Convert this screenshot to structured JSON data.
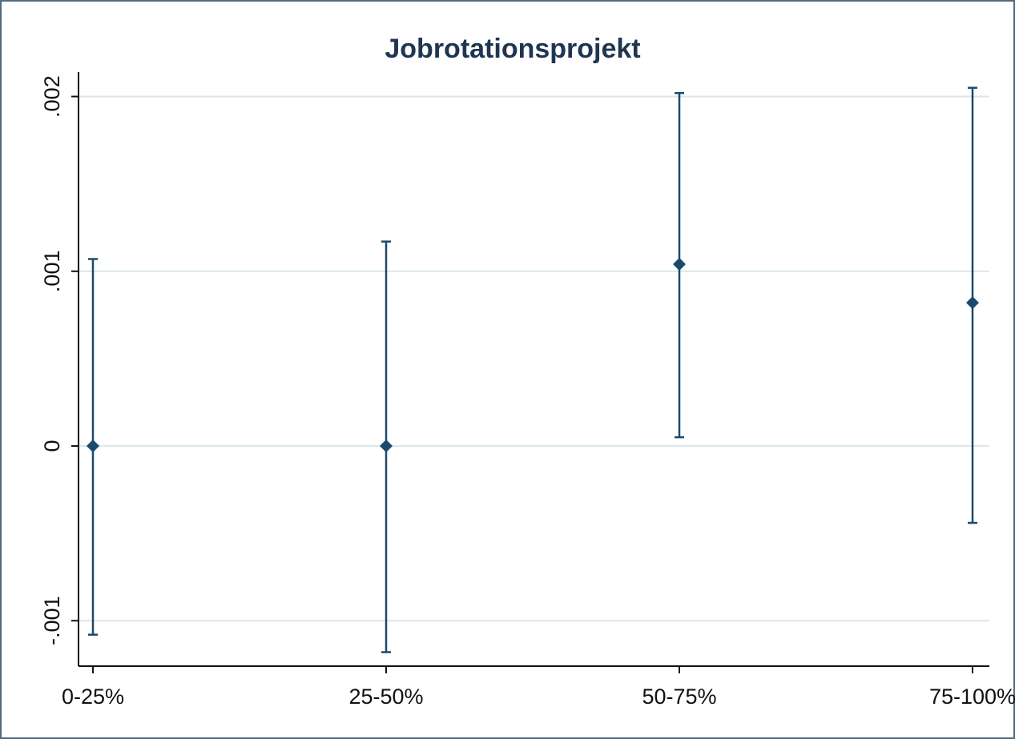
{
  "chart_data": {
    "type": "scatter",
    "title": "Jobrotationsprojekt",
    "categories": [
      "0-25%",
      "25-50%",
      "50-75%",
      "75-100%"
    ],
    "point_estimates": [
      0,
      0,
      0.00104,
      0.00082
    ],
    "ci_upper": [
      0.00107,
      0.00117,
      0.00202,
      0.00205
    ],
    "ci_lower": [
      -0.00108,
      -0.00118,
      5e-05,
      -0.00044
    ],
    "y_ticks": [
      -0.001,
      0,
      0.001,
      0.002
    ],
    "y_tick_labels": [
      "-.001",
      "0",
      ".001",
      ".002"
    ],
    "ylim": [
      -0.00126,
      0.00214
    ],
    "xlabel": "",
    "ylabel": "",
    "grid": true,
    "legend": "none",
    "colors": {
      "series": "#1b4a6e",
      "grid": "#dbe8ea",
      "title": "#1f3552",
      "frame": "#4e6b80"
    }
  }
}
